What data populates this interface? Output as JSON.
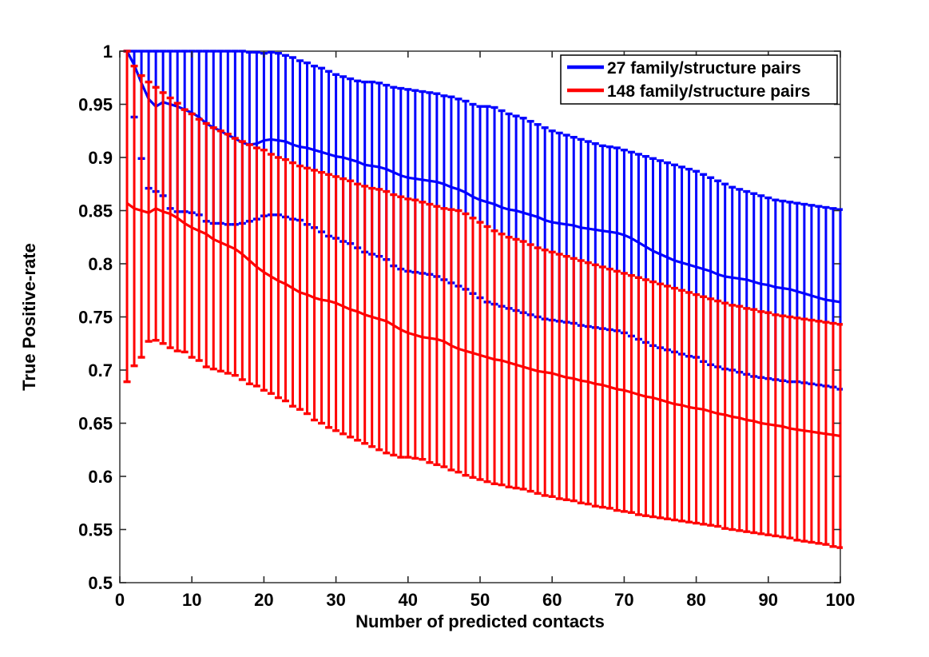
{
  "chart_data": {
    "type": "line",
    "subtype": "errorbar",
    "title": "",
    "xlabel": "Number of predicted contacts",
    "ylabel": "True Positive-rate",
    "xlim": [
      0,
      100
    ],
    "ylim": [
      0.5,
      1.0
    ],
    "grid": false,
    "xticks": [
      0,
      10,
      20,
      30,
      40,
      50,
      60,
      70,
      80,
      90,
      100
    ],
    "xtick_labels": [
      "0",
      "10",
      "20",
      "30",
      "40",
      "50",
      "60",
      "70",
      "80",
      "90",
      "100"
    ],
    "yticks": [
      0.5,
      0.55,
      0.6,
      0.65,
      0.7,
      0.75,
      0.8,
      0.85,
      0.9,
      0.95,
      1.0
    ],
    "ytick_labels": [
      "0.5",
      "0.55",
      "0.6",
      "0.65",
      "0.7",
      "0.75",
      "0.8",
      "0.85",
      "0.9",
      "0.95",
      "1"
    ],
    "legend": {
      "position": "top-right",
      "entries": [
        {
          "label": "27 family/structure pairs",
          "color": "#0000ff"
        },
        {
          "label": "148 family/structure pairs",
          "color": "#ff0000"
        }
      ]
    },
    "x": [
      1,
      2,
      3,
      4,
      5,
      6,
      7,
      8,
      9,
      10,
      11,
      12,
      13,
      14,
      15,
      16,
      17,
      18,
      19,
      20,
      21,
      22,
      23,
      24,
      25,
      26,
      27,
      28,
      29,
      30,
      31,
      32,
      33,
      34,
      35,
      36,
      37,
      38,
      39,
      40,
      41,
      42,
      43,
      44,
      45,
      46,
      47,
      48,
      49,
      50,
      51,
      52,
      53,
      54,
      55,
      56,
      57,
      58,
      59,
      60,
      61,
      62,
      63,
      64,
      65,
      66,
      67,
      68,
      69,
      70,
      71,
      72,
      73,
      74,
      75,
      76,
      77,
      78,
      79,
      80,
      81,
      82,
      83,
      84,
      85,
      86,
      87,
      88,
      89,
      90,
      91,
      92,
      93,
      94,
      95,
      96,
      97,
      98,
      99,
      100
    ],
    "series": [
      {
        "name": "27 family/structure pairs",
        "color": "#0000ff",
        "mean": [
          1.0,
          0.987,
          0.97,
          0.955,
          0.948,
          0.952,
          0.95,
          0.948,
          0.945,
          0.942,
          0.938,
          0.932,
          0.928,
          0.925,
          0.921,
          0.918,
          0.914,
          0.912,
          0.913,
          0.916,
          0.917,
          0.916,
          0.915,
          0.912,
          0.91,
          0.909,
          0.907,
          0.905,
          0.903,
          0.901,
          0.9,
          0.898,
          0.896,
          0.893,
          0.892,
          0.891,
          0.889,
          0.886,
          0.883,
          0.881,
          0.88,
          0.879,
          0.878,
          0.877,
          0.875,
          0.872,
          0.87,
          0.867,
          0.863,
          0.86,
          0.858,
          0.856,
          0.853,
          0.851,
          0.85,
          0.848,
          0.846,
          0.844,
          0.841,
          0.839,
          0.838,
          0.837,
          0.836,
          0.834,
          0.833,
          0.832,
          0.831,
          0.83,
          0.829,
          0.827,
          0.824,
          0.82,
          0.816,
          0.812,
          0.809,
          0.806,
          0.803,
          0.801,
          0.799,
          0.797,
          0.795,
          0.793,
          0.79,
          0.788,
          0.787,
          0.786,
          0.785,
          0.783,
          0.781,
          0.78,
          0.778,
          0.777,
          0.776,
          0.774,
          0.772,
          0.77,
          0.768,
          0.766,
          0.765,
          0.764
        ],
        "upper": [
          1.0,
          1.0,
          1.0,
          1.0,
          1.0,
          1.0,
          1.0,
          1.0,
          1.0,
          1.0,
          1.0,
          1.0,
          1.0,
          1.0,
          1.0,
          1.0,
          1.0,
          0.999,
          0.999,
          0.998,
          0.999,
          0.998,
          0.996,
          0.994,
          0.991,
          0.989,
          0.986,
          0.984,
          0.981,
          0.978,
          0.976,
          0.974,
          0.972,
          0.971,
          0.971,
          0.97,
          0.968,
          0.966,
          0.965,
          0.964,
          0.963,
          0.962,
          0.961,
          0.96,
          0.958,
          0.957,
          0.955,
          0.953,
          0.95,
          0.948,
          0.948,
          0.947,
          0.944,
          0.941,
          0.939,
          0.937,
          0.934,
          0.931,
          0.928,
          0.925,
          0.923,
          0.921,
          0.919,
          0.917,
          0.915,
          0.913,
          0.911,
          0.91,
          0.909,
          0.907,
          0.905,
          0.903,
          0.901,
          0.899,
          0.897,
          0.895,
          0.893,
          0.891,
          0.889,
          0.887,
          0.884,
          0.881,
          0.878,
          0.875,
          0.872,
          0.87,
          0.868,
          0.866,
          0.864,
          0.862,
          0.86,
          0.859,
          0.858,
          0.857,
          0.856,
          0.855,
          0.854,
          0.853,
          0.852,
          0.851
        ],
        "lower": [
          1.0,
          0.938,
          0.899,
          0.871,
          0.868,
          0.864,
          0.852,
          0.849,
          0.849,
          0.848,
          0.846,
          0.84,
          0.838,
          0.838,
          0.837,
          0.837,
          0.838,
          0.84,
          0.842,
          0.845,
          0.846,
          0.846,
          0.844,
          0.842,
          0.841,
          0.837,
          0.834,
          0.83,
          0.826,
          0.824,
          0.821,
          0.819,
          0.815,
          0.811,
          0.809,
          0.807,
          0.804,
          0.798,
          0.795,
          0.793,
          0.792,
          0.791,
          0.79,
          0.788,
          0.785,
          0.782,
          0.779,
          0.776,
          0.772,
          0.768,
          0.764,
          0.762,
          0.76,
          0.758,
          0.756,
          0.754,
          0.752,
          0.75,
          0.748,
          0.747,
          0.746,
          0.745,
          0.744,
          0.742,
          0.741,
          0.74,
          0.739,
          0.738,
          0.737,
          0.735,
          0.732,
          0.729,
          0.726,
          0.723,
          0.721,
          0.719,
          0.717,
          0.715,
          0.713,
          0.712,
          0.708,
          0.705,
          0.703,
          0.701,
          0.7,
          0.698,
          0.696,
          0.694,
          0.693,
          0.692,
          0.691,
          0.69,
          0.689,
          0.689,
          0.688,
          0.687,
          0.686,
          0.685,
          0.684,
          0.682
        ]
      },
      {
        "name": "148 family/structure pairs",
        "color": "#ff0000",
        "mean": [
          0.857,
          0.852,
          0.85,
          0.848,
          0.852,
          0.849,
          0.847,
          0.843,
          0.838,
          0.834,
          0.831,
          0.828,
          0.823,
          0.82,
          0.817,
          0.814,
          0.809,
          0.803,
          0.797,
          0.792,
          0.788,
          0.784,
          0.781,
          0.777,
          0.773,
          0.771,
          0.768,
          0.766,
          0.765,
          0.763,
          0.76,
          0.757,
          0.755,
          0.752,
          0.75,
          0.748,
          0.746,
          0.742,
          0.738,
          0.735,
          0.733,
          0.731,
          0.73,
          0.729,
          0.727,
          0.723,
          0.72,
          0.718,
          0.716,
          0.714,
          0.712,
          0.71,
          0.709,
          0.707,
          0.705,
          0.703,
          0.701,
          0.699,
          0.698,
          0.697,
          0.695,
          0.693,
          0.692,
          0.69,
          0.689,
          0.687,
          0.686,
          0.684,
          0.682,
          0.681,
          0.679,
          0.677,
          0.675,
          0.674,
          0.672,
          0.67,
          0.668,
          0.667,
          0.665,
          0.664,
          0.663,
          0.661,
          0.659,
          0.658,
          0.656,
          0.655,
          0.653,
          0.652,
          0.65,
          0.649,
          0.648,
          0.647,
          0.645,
          0.644,
          0.643,
          0.642,
          0.641,
          0.64,
          0.639,
          0.638
        ],
        "upper": [
          1.0,
          0.986,
          0.977,
          0.971,
          0.966,
          0.961,
          0.956,
          0.951,
          0.945,
          0.941,
          0.936,
          0.932,
          0.928,
          0.925,
          0.922,
          0.918,
          0.915,
          0.912,
          0.909,
          0.907,
          0.903,
          0.9,
          0.898,
          0.895,
          0.892,
          0.89,
          0.888,
          0.886,
          0.884,
          0.882,
          0.88,
          0.878,
          0.875,
          0.873,
          0.871,
          0.87,
          0.868,
          0.865,
          0.863,
          0.861,
          0.86,
          0.858,
          0.856,
          0.854,
          0.852,
          0.851,
          0.85,
          0.847,
          0.843,
          0.839,
          0.835,
          0.831,
          0.828,
          0.825,
          0.823,
          0.821,
          0.818,
          0.815,
          0.813,
          0.811,
          0.809,
          0.807,
          0.805,
          0.803,
          0.801,
          0.799,
          0.797,
          0.795,
          0.793,
          0.791,
          0.789,
          0.787,
          0.785,
          0.783,
          0.781,
          0.779,
          0.777,
          0.775,
          0.773,
          0.771,
          0.769,
          0.767,
          0.765,
          0.763,
          0.761,
          0.76,
          0.758,
          0.757,
          0.755,
          0.754,
          0.752,
          0.751,
          0.75,
          0.749,
          0.748,
          0.747,
          0.746,
          0.745,
          0.744,
          0.743
        ],
        "lower": [
          0.689,
          0.704,
          0.712,
          0.727,
          0.728,
          0.725,
          0.721,
          0.718,
          0.717,
          0.712,
          0.709,
          0.703,
          0.701,
          0.699,
          0.697,
          0.695,
          0.691,
          0.687,
          0.685,
          0.681,
          0.678,
          0.674,
          0.671,
          0.666,
          0.663,
          0.659,
          0.653,
          0.65,
          0.646,
          0.643,
          0.64,
          0.637,
          0.634,
          0.631,
          0.628,
          0.625,
          0.622,
          0.62,
          0.618,
          0.618,
          0.617,
          0.616,
          0.613,
          0.611,
          0.609,
          0.606,
          0.604,
          0.601,
          0.599,
          0.597,
          0.595,
          0.593,
          0.592,
          0.59,
          0.589,
          0.588,
          0.586,
          0.584,
          0.582,
          0.581,
          0.579,
          0.578,
          0.577,
          0.575,
          0.574,
          0.572,
          0.571,
          0.57,
          0.568,
          0.567,
          0.566,
          0.564,
          0.563,
          0.562,
          0.561,
          0.56,
          0.559,
          0.558,
          0.557,
          0.556,
          0.555,
          0.554,
          0.553,
          0.551,
          0.55,
          0.549,
          0.548,
          0.547,
          0.546,
          0.545,
          0.544,
          0.543,
          0.542,
          0.54,
          0.539,
          0.538,
          0.537,
          0.536,
          0.534,
          0.533
        ]
      }
    ]
  }
}
